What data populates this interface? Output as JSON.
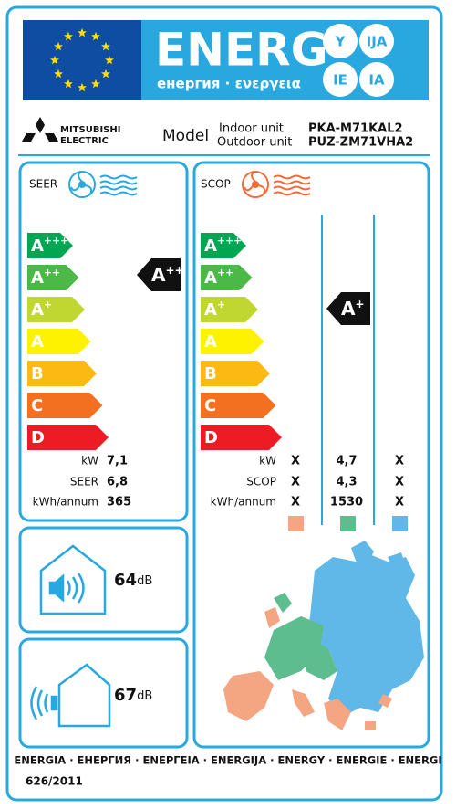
{
  "header": {
    "title": "ENERG",
    "subtitle": "енергия · ενεργεια",
    "suffixes": [
      "Y",
      "IJA",
      "IE",
      "IA"
    ]
  },
  "brand": {
    "line1": "MITSUBISHI",
    "line2": "ELECTRIC"
  },
  "model": {
    "label": "Model",
    "indoor_label": "Indoor unit",
    "outdoor_label": "Outdoor unit",
    "indoor": "PKA-M71KAL2",
    "outdoor": "PUZ-ZM71VHA2"
  },
  "energy_classes": [
    {
      "letter": "A",
      "sup": "+++",
      "color": "#00a651"
    },
    {
      "letter": "A",
      "sup": "++",
      "color": "#4cb848"
    },
    {
      "letter": "A",
      "sup": "+",
      "color": "#bfd730"
    },
    {
      "letter": "A",
      "color": "#fff200"
    },
    {
      "letter": "B",
      "color": "#fdb913"
    },
    {
      "letter": "C",
      "color": "#f37021"
    },
    {
      "letter": "D",
      "color": "#ed1c24"
    }
  ],
  "cooling": {
    "label": "SEER",
    "rating": {
      "letter": "A",
      "sup": "++"
    },
    "rows": [
      {
        "label": "kW",
        "value": "7,1"
      },
      {
        "label": "SEER",
        "value": "6,8"
      },
      {
        "label": "kWh/annum",
        "value": "365"
      }
    ]
  },
  "heating": {
    "label": "SCOP",
    "rating": {
      "letter": "A",
      "sup": "+"
    },
    "rows": [
      {
        "label": "kW",
        "values": [
          "X",
          "4,7",
          "X"
        ]
      },
      {
        "label": "SCOP",
        "values": [
          "X",
          "4,3",
          "X"
        ]
      },
      {
        "label": "kWh/annum",
        "values": [
          "X",
          "1530",
          "X"
        ]
      }
    ]
  },
  "noise": {
    "indoor": {
      "value": "64",
      "unit": "dB"
    },
    "outdoor": {
      "value": "67",
      "unit": "dB"
    }
  },
  "footer": {
    "languages": "ENERGIA · ЕНЕРГИЯ · ΕΝΕΡΓΕΙΑ · ENERGIJA · ENERGY · ENERGIE · ENERGI",
    "regulation": "626/2011"
  }
}
